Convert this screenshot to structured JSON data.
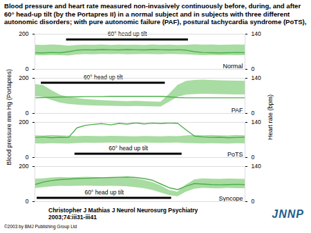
{
  "title": "Blood pressure and heart rate measured non-invasively continuously before, during, and after 60° head-up tilt (by the Portapres II) in a normal subject and in subjects with three different autonomic disorders; with pure autonomic failure (PAF), postural tachycardia syndrome (PoTS),",
  "ylabel": "Blood pressure mm Hg (Portapres)",
  "y2label": "Heart rate (bpm)",
  "source": [
    "Christopher J Mathias J Neurol Neurosurg Psychiatry",
    "2003;74:iii31-iii41"
  ],
  "copyright": "©2003 by BMJ Publishing Group Ltd",
  "logo": "JNNP",
  "chart_data": [
    {
      "type": "line",
      "label": "Normal",
      "grid": false,
      "tick_labels": "y",
      "x": [
        0,
        4,
        8,
        12,
        16,
        20,
        24,
        28,
        32,
        36,
        40,
        44,
        48,
        52,
        56,
        60,
        64,
        68,
        72,
        76,
        80,
        84,
        88,
        92,
        96,
        100
      ],
      "xlim": [
        0,
        100
      ],
      "ylim": [
        0,
        200
      ],
      "yticks": [
        0,
        200
      ],
      "y2lim": [
        0,
        140
      ],
      "y2ticks": [
        0,
        140
      ],
      "annotation": {
        "text": "60° head up tilt",
        "start": 15,
        "end": 73
      },
      "series": [
        {
          "type": "band",
          "color": "#a8dca2",
          "upper": [
            138,
            136,
            139,
            137,
            132,
            136,
            138,
            137,
            139,
            136,
            138,
            137,
            138,
            136,
            139,
            137,
            138,
            136,
            137,
            140,
            138,
            139,
            137,
            138,
            139,
            138
          ],
          "lower": [
            78,
            77,
            79,
            78,
            76,
            82,
            84,
            83,
            85,
            84,
            85,
            83,
            84,
            85,
            84,
            83,
            85,
            84,
            83,
            80,
            78,
            79,
            78,
            79,
            78,
            78
          ]
        },
        {
          "type": "line",
          "color": "#4daf4a",
          "axis": "y2",
          "values": [
            66,
            65,
            67,
            66,
            70,
            76,
            78,
            77,
            79,
            78,
            77,
            79,
            78,
            77,
            79,
            78,
            77,
            78,
            76,
            70,
            67,
            66,
            65,
            66,
            67,
            66
          ]
        }
      ]
    },
    {
      "type": "line",
      "label": "PAF",
      "grid": false,
      "tick_labels": "y",
      "x": [
        0,
        4,
        8,
        12,
        16,
        20,
        24,
        28,
        32,
        36,
        40,
        44,
        48,
        52,
        56,
        60,
        64,
        68,
        72,
        76,
        80,
        84,
        88,
        92,
        96,
        100
      ],
      "xlim": [
        0,
        100
      ],
      "ylim": [
        0,
        200
      ],
      "yticks": [
        0,
        200
      ],
      "y2lim": [
        0,
        140
      ],
      "y2ticks": [
        0,
        140
      ],
      "annotation": {
        "text": "60° head up tilt",
        "start": 3,
        "end": 62
      },
      "series": [
        {
          "type": "band",
          "color": "#a8dca2",
          "upper": [
            165,
            160,
            130,
            105,
            92,
            85,
            80,
            76,
            74,
            72,
            70,
            68,
            70,
            68,
            66,
            65,
            110,
            160,
            182,
            188,
            190,
            188,
            186,
            185,
            184,
            183
          ],
          "lower": [
            95,
            92,
            75,
            60,
            52,
            48,
            45,
            43,
            42,
            41,
            40,
            39,
            40,
            39,
            38,
            37,
            65,
            92,
            105,
            108,
            110,
            109,
            108,
            107,
            106,
            106
          ]
        },
        {
          "type": "line",
          "color": "#4daf4a",
          "axis": "y2",
          "values": [
            62,
            63,
            64,
            65,
            66,
            66,
            67,
            67,
            67,
            68,
            68,
            68,
            68,
            68,
            68,
            68,
            66,
            63,
            62,
            62,
            62,
            62,
            62,
            62,
            62,
            62
          ]
        }
      ]
    },
    {
      "type": "line",
      "label": "PoTS",
      "grid": false,
      "tick_labels": "y",
      "x": [
        0,
        4,
        8,
        12,
        16,
        20,
        24,
        28,
        32,
        36,
        40,
        44,
        48,
        52,
        56,
        60,
        64,
        68,
        72,
        76,
        80,
        84,
        88,
        92,
        96,
        100
      ],
      "xlim": [
        0,
        100
      ],
      "ylim": [
        0,
        200
      ],
      "yticks": [
        0,
        200
      ],
      "y2lim": [
        0,
        140
      ],
      "y2ticks": [
        0,
        140
      ],
      "annotation": {
        "text": "60° head up tilt",
        "start": 19,
        "end": 70
      },
      "series": [
        {
          "type": "band",
          "color": "#a8dca2",
          "upper": [
            125,
            124,
            126,
            125,
            123,
            120,
            122,
            121,
            120,
            122,
            121,
            120,
            119,
            121,
            120,
            119,
            121,
            120,
            124,
            126,
            125,
            126,
            125,
            124,
            126,
            125
          ],
          "lower": [
            78,
            77,
            79,
            78,
            77,
            80,
            82,
            81,
            82,
            83,
            82,
            81,
            82,
            83,
            82,
            81,
            82,
            83,
            80,
            79,
            78,
            79,
            78,
            77,
            79,
            78
          ]
        },
        {
          "type": "line",
          "color": "#4daf4a",
          "axis": "y2",
          "values": [
            80,
            82,
            79,
            81,
            80,
            118,
            128,
            132,
            135,
            130,
            136,
            133,
            138,
            134,
            137,
            135,
            138,
            136,
            110,
            85,
            82,
            80,
            81,
            79,
            80,
            81
          ]
        }
      ]
    },
    {
      "type": "line",
      "label": "Syncope",
      "grid": false,
      "tick_labels": "y",
      "x": [
        0,
        4,
        8,
        12,
        16,
        20,
        24,
        28,
        32,
        36,
        40,
        44,
        48,
        52,
        56,
        60,
        64,
        68,
        72,
        76,
        80,
        84,
        88,
        92,
        96,
        100
      ],
      "xlim": [
        0,
        100
      ],
      "ylim": [
        0,
        200
      ],
      "yticks": [
        0,
        200
      ],
      "y2lim": [
        0,
        140
      ],
      "y2ticks": [
        0,
        140
      ],
      "annotation": {
        "text": "60° head up tilt",
        "start": 1,
        "end": 65
      },
      "series": [
        {
          "type": "band",
          "color": "#a8dca2",
          "upper": [
            128,
            130,
            135,
            138,
            136,
            137,
            139,
            138,
            137,
            136,
            138,
            135,
            130,
            122,
            110,
            90,
            65,
            55,
            95,
            125,
            130,
            128,
            127,
            129,
            128,
            127
          ],
          "lower": [
            75,
            80,
            85,
            88,
            87,
            88,
            89,
            88,
            87,
            88,
            87,
            85,
            80,
            75,
            65,
            50,
            35,
            28,
            55,
            72,
            76,
            75,
            74,
            76,
            75,
            75
          ]
        },
        {
          "type": "line",
          "color": "#4daf4a",
          "axis": "y2",
          "values": [
            68,
            78,
            84,
            88,
            90,
            92,
            93,
            94,
            95,
            96,
            97,
            98,
            96,
            92,
            85,
            70,
            55,
            48,
            62,
            72,
            70,
            68,
            67,
            68,
            69,
            68
          ]
        }
      ]
    }
  ]
}
